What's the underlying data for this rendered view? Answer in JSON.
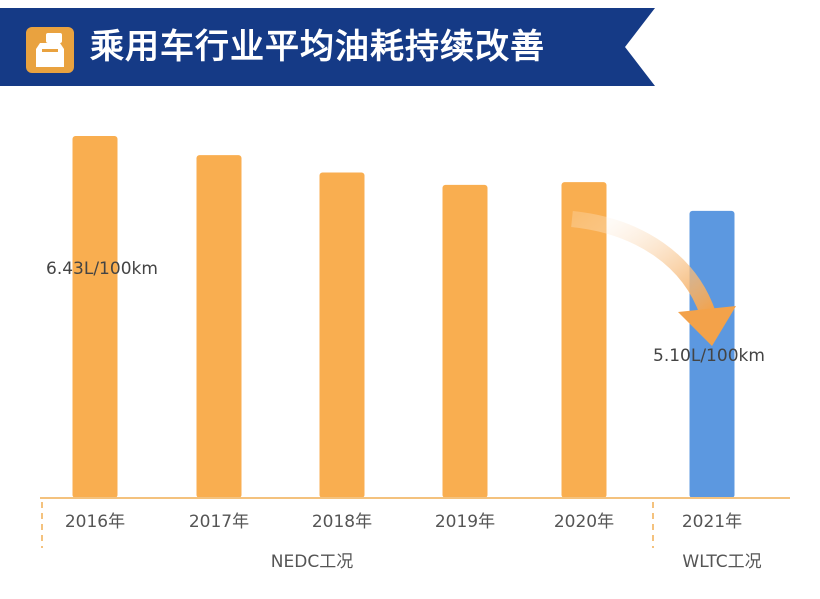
{
  "title": "乘用车行业平均油耗持续改善",
  "colors": {
    "banner": "#153a86",
    "banner_accent": "#e9a23f",
    "nedc_bar": "#f9ae50",
    "wltc_bar": "#5c98e0",
    "axis": "#f4c27e"
  },
  "chart_data": {
    "type": "bar",
    "categories": [
      "2016年",
      "2017年",
      "2018年",
      "2019年",
      "2020年",
      "2021年"
    ],
    "values": [
      6.43,
      6.09,
      5.78,
      5.56,
      5.61,
      5.1
    ],
    "unit": "L/100km",
    "groups": [
      {
        "label": "NEDC工况",
        "categories": [
          "2016年",
          "2017年",
          "2018年",
          "2019年",
          "2020年"
        ]
      },
      {
        "label": "WLTC工况",
        "categories": [
          "2021年"
        ]
      }
    ],
    "data_labels": [
      {
        "category": "2016年",
        "value": "6.43",
        "unit": "L/100km"
      },
      {
        "category": "2021年",
        "value": "5.10",
        "unit": "L/100km"
      }
    ],
    "ylim": [
      0,
      6.5
    ],
    "grid": false,
    "legend": "none"
  }
}
